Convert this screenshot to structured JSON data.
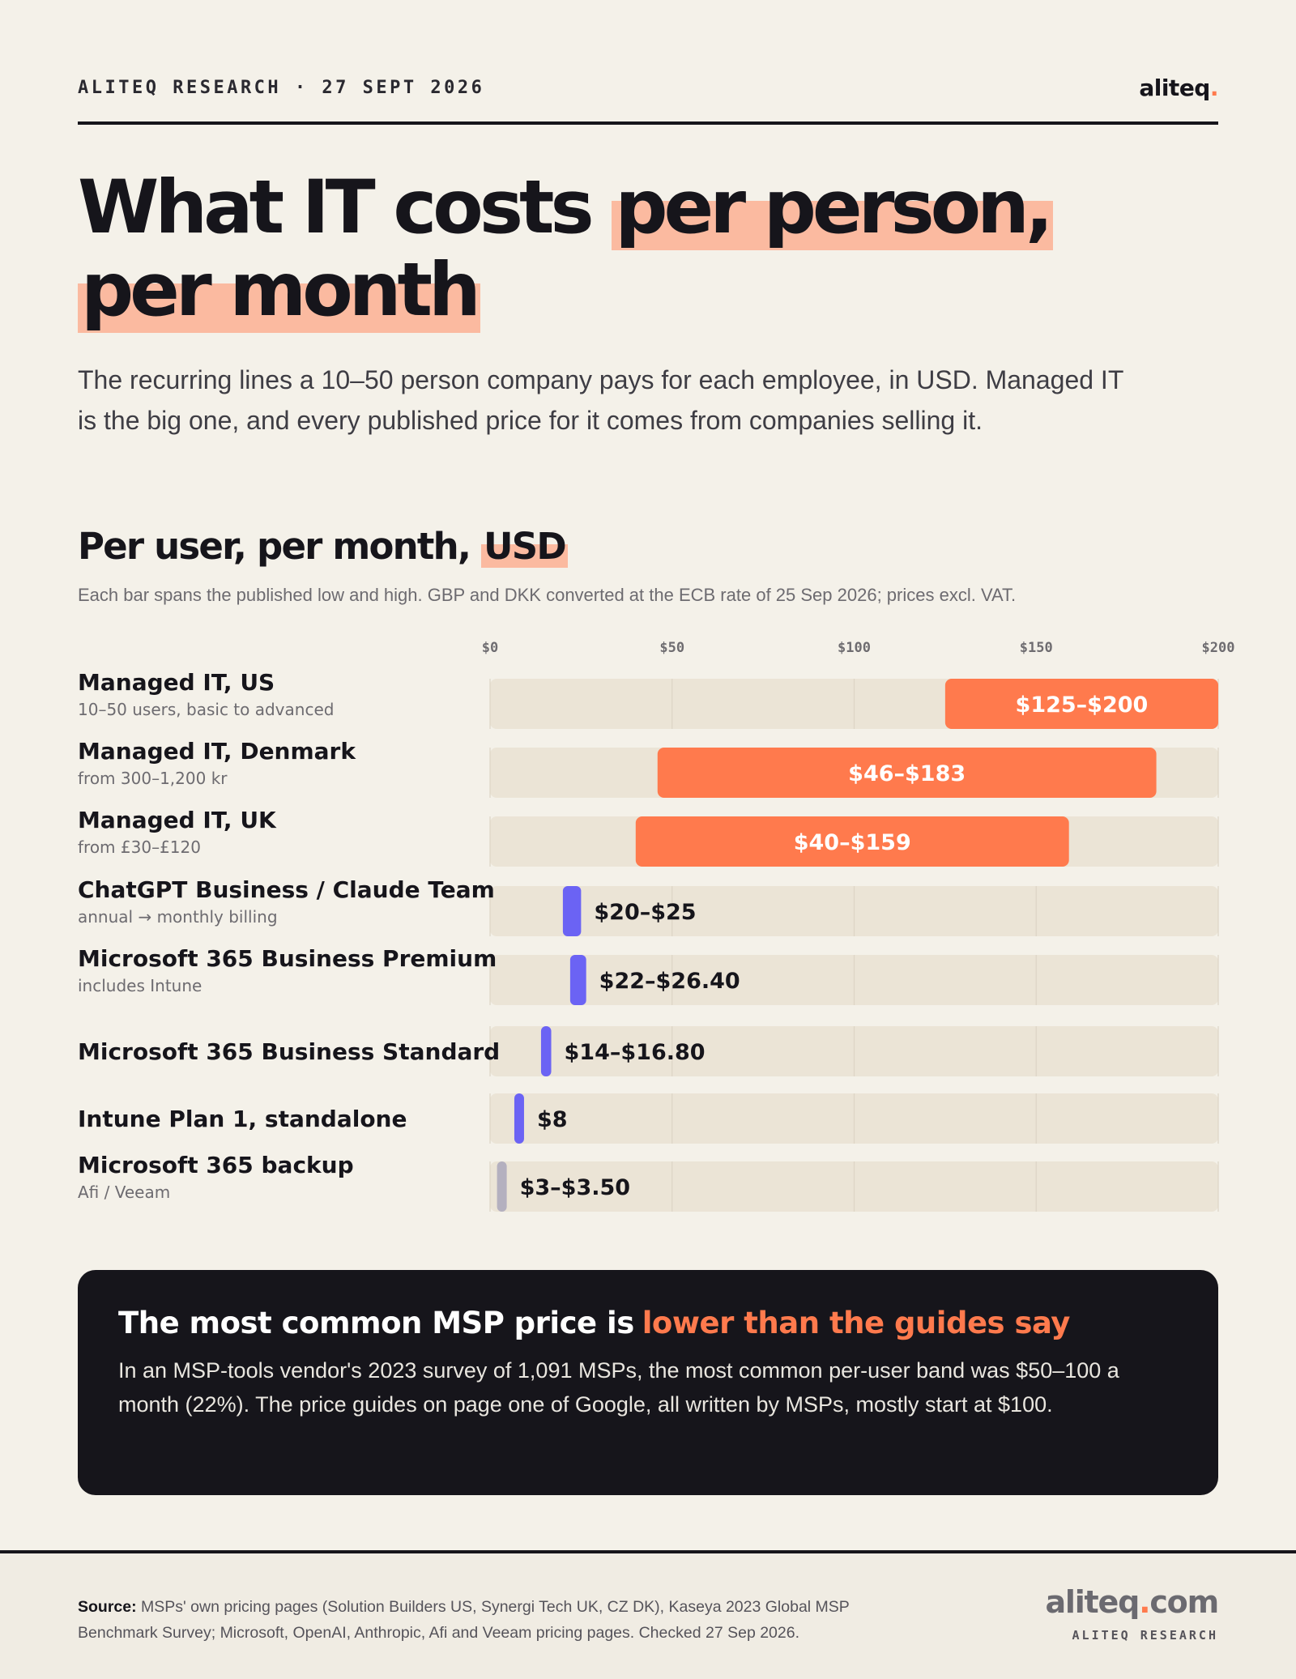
{
  "header": {
    "kicker": "ALITEQ RESEARCH · 27 SEPT 2026",
    "brand_name": "aliteq",
    "brand_dot": "."
  },
  "headline": {
    "plain": "What IT costs",
    "highlight_1": "per person,",
    "highlight_2": "per month"
  },
  "lede": "The recurring lines a 10–50 person company pays for each employee, in USD. Managed IT is the big one, and every published price for it comes from companies selling it.",
  "section": {
    "title_plain": "Per user, per month,",
    "title_highlight": "USD",
    "note": "Each bar spans the published low and high. GBP and DKK converted at the ECB rate of 25 Sep 2026; prices excl. VAT."
  },
  "chart_data": {
    "type": "bar",
    "orientation": "horizontal",
    "range_bars": true,
    "xlim": [
      0,
      200
    ],
    "ticks": [
      0,
      50,
      100,
      150,
      200
    ],
    "tick_labels": [
      "$0",
      "$50",
      "$100",
      "$150",
      "$200"
    ],
    "grid": true,
    "rows": [
      {
        "label": "Managed IT, US",
        "sub": "10–50 users, basic to advanced",
        "low": 125,
        "high": 200,
        "value_label": "$125–$200",
        "color": "#ff7a4d",
        "label_inside": true
      },
      {
        "label": "Managed IT, Denmark",
        "sub": "from 300–1,200 kr",
        "low": 46,
        "high": 183,
        "value_label": "$46–$183",
        "color": "#ff7a4d",
        "label_inside": true
      },
      {
        "label": "Managed IT, UK",
        "sub": "from £30–£120",
        "low": 40,
        "high": 159,
        "value_label": "$40–$159",
        "color": "#ff7a4d",
        "label_inside": true
      },
      {
        "label": "ChatGPT Business / Claude Team",
        "sub": "annual → monthly billing",
        "low": 20,
        "high": 25,
        "value_label": "$20–$25",
        "color": "#6b63f4",
        "label_inside": false
      },
      {
        "label": "Microsoft 365 Business Premium",
        "sub": "includes Intune",
        "low": 22,
        "high": 26.4,
        "value_label": "$22–$26.40",
        "color": "#6b63f4",
        "label_inside": false
      },
      {
        "label": "Microsoft 365 Business Standard",
        "sub": "",
        "low": 14,
        "high": 16.8,
        "value_label": "$14–$16.80",
        "color": "#6b63f4",
        "label_inside": false
      },
      {
        "label": "Intune Plan 1, standalone",
        "sub": "",
        "low": 8,
        "high": 8,
        "value_label": "$8",
        "color": "#6b63f4",
        "label_inside": false
      },
      {
        "label": "Microsoft 365 backup",
        "sub": "Afi / Veeam",
        "low": 3,
        "high": 3.5,
        "value_label": "$3–$3.50",
        "color": "#b4b0bf",
        "label_inside": false
      }
    ]
  },
  "callout": {
    "title_plain": "The most common MSP price is",
    "title_accent": "lower than the guides say",
    "body": "In an MSP-tools vendor's 2023 survey of 1,091 MSPs, the most common per-user band was $50–100 a month (22%). The price guides on page one of Google, all written by MSPs, mostly start at $100."
  },
  "footer": {
    "source_label": "Source:",
    "source_text": "MSPs' own pricing pages (Solution Builders US, Synergi Tech UK, CZ DK), Kaseya 2023 Global MSP Benchmark Survey; Microsoft, OpenAI, Anthropic, Afi and Veeam pricing pages. Checked 27 Sep 2026.",
    "brand_name": "aliteq",
    "brand_dot": ".",
    "brand_tld": "com",
    "brand_sub": "ALITEQ RESEARCH"
  },
  "colors": {
    "background": "#f4f1e9",
    "highlight": "#fbbaa0",
    "accent_orange": "#ff7a4d",
    "accent_purple": "#6b63f4",
    "muted_bar": "#b4b0bf",
    "track": "#ebe4d6",
    "dark": "#16151b"
  }
}
